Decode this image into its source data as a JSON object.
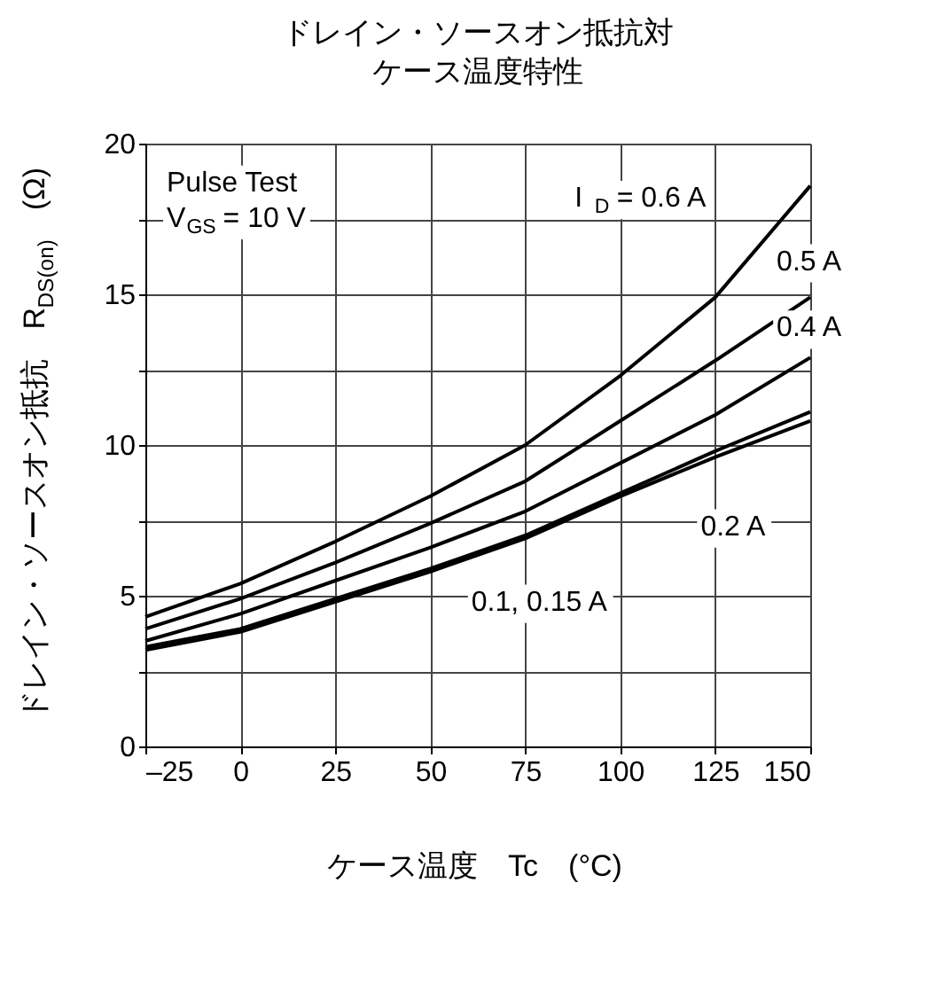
{
  "chart_data": {
    "type": "line",
    "title": "ドレイン・ソースオン抵抗対ケース温度特性",
    "xlabel": "ケース温度　Tc　(°C)",
    "ylabel": "ドレイン・ソースオン抵抗　R$_{DS(on)}$　(Ω)",
    "annotations": [
      "Pulse Test",
      "V$_{GS}$ = 10 V"
    ],
    "x": [
      -25,
      0,
      25,
      50,
      75,
      100,
      125,
      150
    ],
    "series": [
      {
        "name": "I$_{D}$ = 0.6 A",
        "color": "#000000",
        "values": [
          4.3,
          5.4,
          6.8,
          8.3,
          10.0,
          12.3,
          14.9,
          18.6
        ]
      },
      {
        "name": "0.5 A",
        "color": "#000000",
        "values": [
          3.9,
          4.9,
          6.1,
          7.4,
          8.8,
          10.8,
          12.8,
          14.9
        ]
      },
      {
        "name": "0.4 A",
        "color": "#000000",
        "values": [
          3.5,
          4.4,
          5.5,
          6.6,
          7.8,
          9.4,
          11.0,
          12.9
        ]
      },
      {
        "name": "0.2 A",
        "color": "#000000",
        "values": [
          3.3,
          3.9,
          4.9,
          5.9,
          7.0,
          8.4,
          9.8,
          11.1
        ]
      },
      {
        "name": "0.1, 0.15 A",
        "color": "#000000",
        "values": [
          3.2,
          3.8,
          4.8,
          5.8,
          6.9,
          8.3,
          9.6,
          10.8
        ]
      }
    ],
    "xlim": [
      -25,
      150
    ],
    "xticks": [
      {
        "value": -25,
        "label": "–25"
      },
      0,
      25,
      50,
      75,
      100,
      125,
      150
    ],
    "ylim": [
      0,
      20
    ],
    "yticks": [
      0,
      {
        "value": 2.5,
        "label": null
      },
      5,
      {
        "value": 7.5,
        "label": null
      },
      10,
      {
        "value": 12.5,
        "label": null
      },
      15,
      {
        "value": 17.5,
        "label": null
      },
      20
    ],
    "grid": true,
    "marker": "none",
    "line_style": "solid"
  }
}
